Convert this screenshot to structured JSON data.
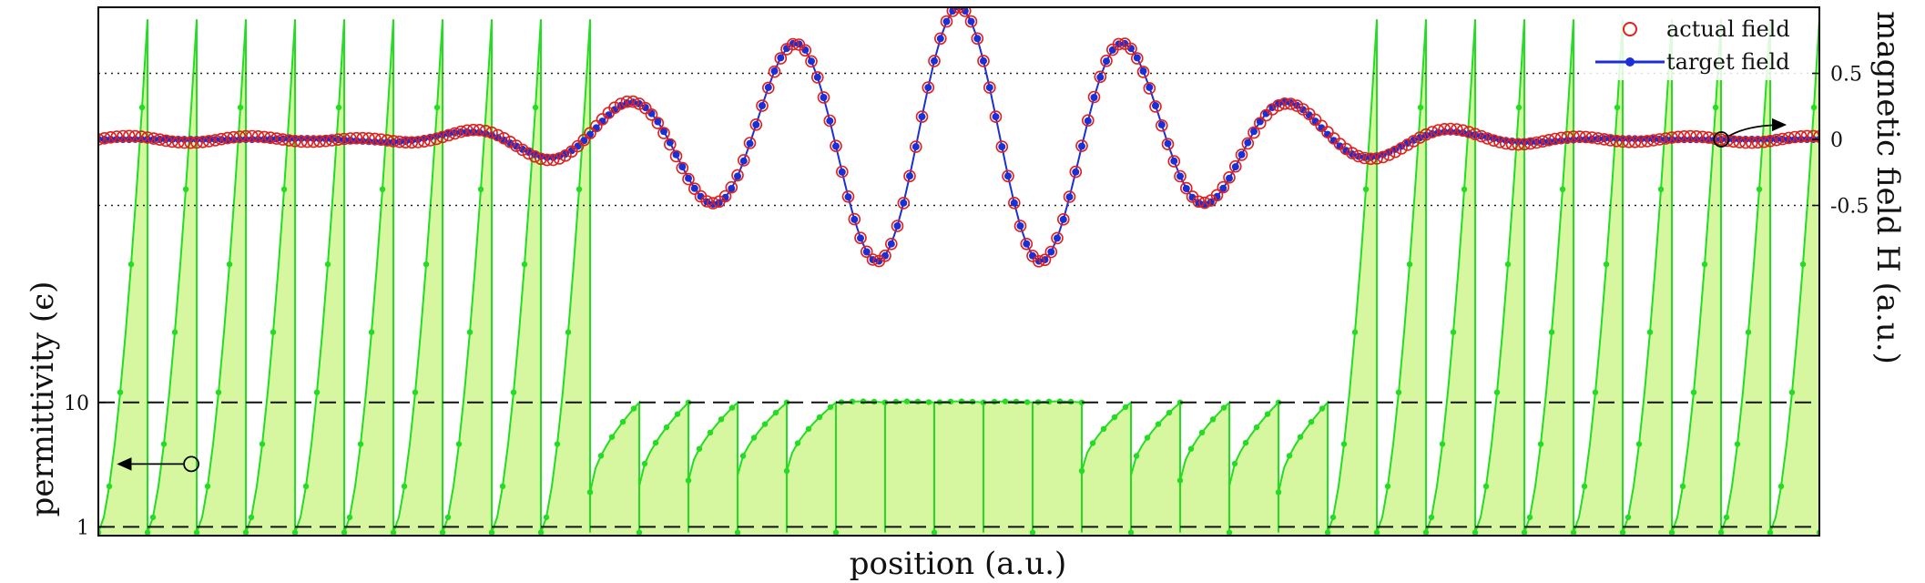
{
  "chart_data": {
    "type": "line",
    "xlabel": "position (a.u.)",
    "left_axis": {
      "label": "permittivity (ϵ)",
      "scale": "log",
      "ticks": [
        "1",
        "10"
      ],
      "tick_values": [
        1,
        10
      ],
      "ylim": [
        0.85,
        15000
      ]
    },
    "right_axis": {
      "label": "magnetic field H (a.u.)",
      "ticks": [
        "0.5",
        "0",
        "-0.5"
      ],
      "tick_values": [
        0.5,
        0,
        -0.5
      ],
      "ylim": [
        -3.0,
        1.0
      ]
    },
    "x_range": [
      0,
      1
    ],
    "legend": {
      "placement": "top-right",
      "entries": [
        {
          "label": "actual field",
          "marker": "open-circle",
          "color": "#e0201b"
        },
        {
          "label": "target field",
          "marker": "dot-line",
          "color": "#1a2fd6"
        }
      ]
    },
    "field_model": {
      "center": 0.5,
      "carrier_period": 0.0965,
      "envelope_width": 0.17,
      "peak_amplitude": 1.0,
      "samples": 281
    },
    "permittivity_model": {
      "segments": 35,
      "baseline": 10,
      "spike_max": 12000,
      "min_value": 0.9
    },
    "gridlines": {
      "right_axis_dotted": [
        0.5,
        -0.5
      ],
      "left_axis_dashed": [
        1,
        10
      ]
    },
    "annotations": [
      {
        "axis": "left",
        "marker": "circle",
        "arrow": "points-left"
      },
      {
        "axis": "right",
        "marker": "circle",
        "arrow": "points-right"
      }
    ],
    "colors": {
      "permittivity_line": "#22dd22",
      "permittivity_fill": "#d6f7a0",
      "target": "#1a2fd6",
      "actual": "#e0201b"
    }
  }
}
